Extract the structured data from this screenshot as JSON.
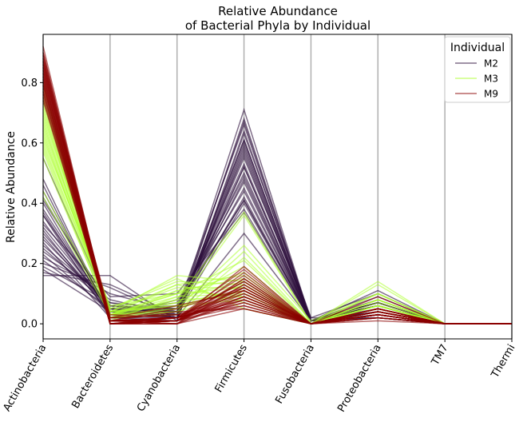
{
  "chart_data": {
    "type": "line",
    "title_lines": [
      "Relative Abundance",
      "of Bacterial Phyla by Individual"
    ],
    "ylabel": "Relative Abundance",
    "xlabel": "",
    "categories": [
      "Actinobacteria",
      "Bacteroidetes",
      "Cyanobacteria",
      "Firmicutes",
      "Fusobacteria",
      "Proteobacteria",
      "TM7",
      "Thermi"
    ],
    "yticks": [
      0.0,
      0.2,
      0.4,
      0.6,
      0.8
    ],
    "ylim": [
      -0.05,
      0.96
    ],
    "grid": "vertical",
    "legend": {
      "title": "Individual",
      "placement": "top-right",
      "entries": [
        "M2",
        "M3",
        "M9"
      ]
    },
    "series": [
      {
        "name": "M2",
        "color": "#2d0f3c",
        "lines": [
          [
            0.16,
            0.16,
            0.01,
            0.63,
            0.02,
            0.02,
            0.0,
            0.0
          ],
          [
            0.17,
            0.13,
            0.03,
            0.61,
            0.01,
            0.04,
            0.0,
            0.0
          ],
          [
            0.2,
            0.12,
            0.02,
            0.58,
            0.01,
            0.06,
            0.0,
            0.0
          ],
          [
            0.22,
            0.1,
            0.04,
            0.56,
            0.01,
            0.07,
            0.0,
            0.0
          ],
          [
            0.24,
            0.08,
            0.03,
            0.61,
            0.01,
            0.03,
            0.0,
            0.0
          ],
          [
            0.26,
            0.07,
            0.02,
            0.57,
            0.01,
            0.07,
            0.0,
            0.0
          ],
          [
            0.28,
            0.06,
            0.05,
            0.53,
            0.01,
            0.07,
            0.0,
            0.0
          ],
          [
            0.3,
            0.05,
            0.04,
            0.52,
            0.01,
            0.08,
            0.0,
            0.0
          ],
          [
            0.32,
            0.05,
            0.06,
            0.49,
            0.01,
            0.07,
            0.0,
            0.0
          ],
          [
            0.34,
            0.04,
            0.05,
            0.5,
            0.01,
            0.06,
            0.0,
            0.0
          ],
          [
            0.36,
            0.05,
            0.04,
            0.48,
            0.01,
            0.06,
            0.0,
            0.0
          ],
          [
            0.38,
            0.04,
            0.07,
            0.44,
            0.01,
            0.06,
            0.0,
            0.0
          ],
          [
            0.4,
            0.03,
            0.05,
            0.45,
            0.01,
            0.06,
            0.0,
            0.0
          ],
          [
            0.42,
            0.04,
            0.06,
            0.41,
            0.01,
            0.06,
            0.0,
            0.0
          ],
          [
            0.44,
            0.03,
            0.05,
            0.41,
            0.01,
            0.06,
            0.0,
            0.0
          ],
          [
            0.46,
            0.02,
            0.08,
            0.37,
            0.01,
            0.06,
            0.0,
            0.0
          ],
          [
            0.25,
            0.06,
            0.03,
            0.71,
            0.01,
            0.04,
            0.0,
            0.0
          ],
          [
            0.19,
            0.07,
            0.05,
            0.66,
            0.01,
            0.02,
            0.0,
            0.0
          ],
          [
            0.29,
            0.04,
            0.04,
            0.55,
            0.02,
            0.1,
            0.0,
            0.0
          ],
          [
            0.33,
            0.09,
            0.1,
            0.38,
            0.01,
            0.09,
            0.0,
            0.0
          ],
          [
            0.55,
            0.05,
            0.02,
            0.3,
            0.01,
            0.07,
            0.0,
            0.0
          ],
          [
            0.48,
            0.02,
            0.03,
            0.4,
            0.01,
            0.06,
            0.0,
            0.0
          ],
          [
            0.36,
            0.02,
            0.02,
            0.52,
            0.01,
            0.07,
            0.0,
            0.0
          ],
          [
            0.31,
            0.03,
            0.02,
            0.59,
            0.01,
            0.04,
            0.0,
            0.0
          ],
          [
            0.27,
            0.02,
            0.01,
            0.64,
            0.01,
            0.05,
            0.0,
            0.0
          ],
          [
            0.23,
            0.04,
            0.03,
            0.67,
            0.01,
            0.02,
            0.0,
            0.0
          ],
          [
            0.41,
            0.06,
            0.04,
            0.42,
            0.01,
            0.06,
            0.0,
            0.0
          ],
          [
            0.37,
            0.03,
            0.06,
            0.47,
            0.01,
            0.07,
            0.0,
            0.0
          ],
          [
            0.21,
            0.05,
            0.02,
            0.6,
            0.01,
            0.11,
            0.0,
            0.0
          ],
          [
            0.18,
            0.04,
            0.02,
            0.68,
            0.01,
            0.07,
            0.0,
            0.0
          ]
        ]
      },
      {
        "name": "M3",
        "color": "#adff2f",
        "lines": [
          [
            0.8,
            0.02,
            0.06,
            0.08,
            0.0,
            0.04,
            0.0,
            0.0
          ],
          [
            0.78,
            0.03,
            0.04,
            0.1,
            0.0,
            0.05,
            0.0,
            0.0
          ],
          [
            0.76,
            0.02,
            0.08,
            0.09,
            0.0,
            0.05,
            0.0,
            0.0
          ],
          [
            0.74,
            0.04,
            0.07,
            0.11,
            0.0,
            0.04,
            0.0,
            0.0
          ],
          [
            0.72,
            0.02,
            0.05,
            0.13,
            0.0,
            0.08,
            0.0,
            0.0
          ],
          [
            0.7,
            0.03,
            0.1,
            0.12,
            0.0,
            0.05,
            0.0,
            0.0
          ],
          [
            0.68,
            0.03,
            0.09,
            0.14,
            0.0,
            0.06,
            0.0,
            0.0
          ],
          [
            0.66,
            0.04,
            0.12,
            0.12,
            0.0,
            0.06,
            0.0,
            0.0
          ],
          [
            0.64,
            0.03,
            0.11,
            0.15,
            0.0,
            0.07,
            0.0,
            0.0
          ],
          [
            0.62,
            0.05,
            0.14,
            0.13,
            0.0,
            0.06,
            0.0,
            0.0
          ],
          [
            0.6,
            0.04,
            0.16,
            0.14,
            0.0,
            0.06,
            0.0,
            0.0
          ],
          [
            0.58,
            0.03,
            0.1,
            0.21,
            0.0,
            0.08,
            0.0,
            0.0
          ],
          [
            0.44,
            0.04,
            0.06,
            0.36,
            0.0,
            0.1,
            0.0,
            0.0
          ],
          [
            0.42,
            0.03,
            0.08,
            0.37,
            0.0,
            0.1,
            0.0,
            0.0
          ],
          [
            0.55,
            0.03,
            0.05,
            0.26,
            0.01,
            0.1,
            0.0,
            0.0
          ],
          [
            0.57,
            0.02,
            0.04,
            0.24,
            0.0,
            0.13,
            0.0,
            0.0
          ],
          [
            0.65,
            0.04,
            0.06,
            0.11,
            0.0,
            0.14,
            0.0,
            0.0
          ],
          [
            0.71,
            0.03,
            0.13,
            0.07,
            0.0,
            0.06,
            0.0,
            0.0
          ],
          [
            0.69,
            0.05,
            0.15,
            0.05,
            0.0,
            0.06,
            0.0,
            0.0
          ],
          [
            0.75,
            0.01,
            0.09,
            0.1,
            0.0,
            0.05,
            0.0,
            0.0
          ],
          [
            0.61,
            0.06,
            0.1,
            0.17,
            0.0,
            0.06,
            0.0,
            0.0
          ],
          [
            0.67,
            0.02,
            0.03,
            0.22,
            0.0,
            0.06,
            0.0,
            0.0
          ],
          [
            0.63,
            0.03,
            0.07,
            0.19,
            0.0,
            0.08,
            0.0,
            0.0
          ],
          [
            0.73,
            0.02,
            0.11,
            0.09,
            0.0,
            0.05,
            0.0,
            0.0
          ],
          [
            0.59,
            0.04,
            0.13,
            0.16,
            0.0,
            0.08,
            0.0,
            0.0
          ]
        ]
      },
      {
        "name": "M9",
        "color": "#8b0000",
        "lines": [
          [
            0.92,
            0.0,
            0.0,
            0.05,
            0.0,
            0.03,
            0.0,
            0.0
          ],
          [
            0.9,
            0.01,
            0.01,
            0.06,
            0.0,
            0.02,
            0.0,
            0.0
          ],
          [
            0.89,
            0.0,
            0.01,
            0.07,
            0.0,
            0.03,
            0.0,
            0.0
          ],
          [
            0.88,
            0.01,
            0.0,
            0.08,
            0.0,
            0.03,
            0.0,
            0.0
          ],
          [
            0.87,
            0.01,
            0.02,
            0.07,
            0.0,
            0.03,
            0.0,
            0.0
          ],
          [
            0.86,
            0.0,
            0.01,
            0.09,
            0.0,
            0.04,
            0.0,
            0.0
          ],
          [
            0.85,
            0.01,
            0.01,
            0.1,
            0.0,
            0.03,
            0.0,
            0.0
          ],
          [
            0.84,
            0.01,
            0.02,
            0.09,
            0.0,
            0.04,
            0.0,
            0.0
          ],
          [
            0.83,
            0.0,
            0.01,
            0.11,
            0.0,
            0.05,
            0.0,
            0.0
          ],
          [
            0.82,
            0.01,
            0.02,
            0.12,
            0.0,
            0.03,
            0.0,
            0.0
          ],
          [
            0.81,
            0.01,
            0.01,
            0.13,
            0.0,
            0.04,
            0.0,
            0.0
          ],
          [
            0.8,
            0.0,
            0.02,
            0.14,
            0.0,
            0.04,
            0.0,
            0.0
          ],
          [
            0.79,
            0.01,
            0.01,
            0.15,
            0.0,
            0.04,
            0.0,
            0.0
          ],
          [
            0.78,
            0.01,
            0.02,
            0.14,
            0.0,
            0.05,
            0.0,
            0.0
          ],
          [
            0.77,
            0.0,
            0.02,
            0.16,
            0.0,
            0.05,
            0.0,
            0.0
          ],
          [
            0.76,
            0.01,
            0.01,
            0.17,
            0.0,
            0.05,
            0.0,
            0.0
          ],
          [
            0.75,
            0.0,
            0.01,
            0.19,
            0.0,
            0.05,
            0.0,
            0.0
          ],
          [
            0.74,
            0.01,
            0.02,
            0.18,
            0.0,
            0.05,
            0.0,
            0.0
          ],
          [
            0.86,
            0.02,
            0.03,
            0.06,
            0.0,
            0.03,
            0.0,
            0.0
          ],
          [
            0.84,
            0.03,
            0.02,
            0.08,
            0.0,
            0.03,
            0.0,
            0.0
          ],
          [
            0.88,
            0.01,
            0.04,
            0.05,
            0.0,
            0.02,
            0.0,
            0.0
          ],
          [
            0.82,
            0.02,
            0.03,
            0.1,
            0.0,
            0.03,
            0.0,
            0.0
          ],
          [
            0.8,
            0.01,
            0.05,
            0.12,
            0.0,
            0.02,
            0.0,
            0.0
          ],
          [
            0.83,
            0.0,
            0.0,
            0.13,
            0.0,
            0.04,
            0.0,
            0.0
          ],
          [
            0.85,
            0.0,
            0.01,
            0.12,
            0.0,
            0.02,
            0.0,
            0.0
          ],
          [
            0.79,
            0.0,
            0.01,
            0.11,
            0.0,
            0.09,
            0.0,
            0.0
          ],
          [
            0.81,
            0.01,
            0.0,
            0.15,
            0.0,
            0.03,
            0.0,
            0.0
          ],
          [
            0.87,
            0.0,
            0.02,
            0.08,
            0.0,
            0.03,
            0.0,
            0.0
          ],
          [
            0.77,
            0.02,
            0.06,
            0.11,
            0.0,
            0.04,
            0.0,
            0.0
          ],
          [
            0.9,
            0.0,
            0.0,
            0.09,
            0.0,
            0.01,
            0.0,
            0.0
          ]
        ]
      }
    ]
  }
}
